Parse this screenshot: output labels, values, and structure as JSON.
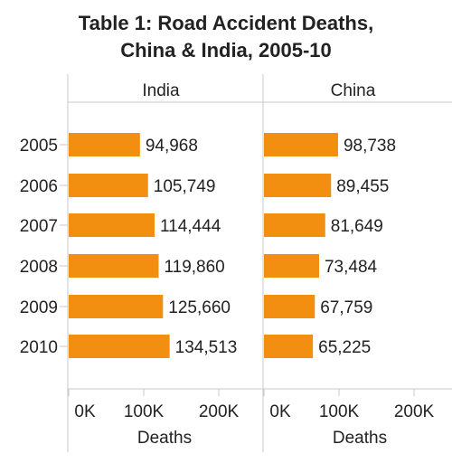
{
  "title_line1": "Table 1: Road Accident Deaths,",
  "title_line2": "China & India, 2005-10",
  "chart_data": {
    "type": "bar",
    "orientation": "horizontal",
    "categories": [
      "2005",
      "2006",
      "2007",
      "2008",
      "2009",
      "2010"
    ],
    "panels": [
      {
        "name": "India",
        "values": [
          94968,
          105749,
          114444,
          119860,
          125660,
          134513
        ],
        "labels": [
          "94,968",
          "105,749",
          "114,444",
          "119,860",
          "125,660",
          "134,513"
        ]
      },
      {
        "name": "China",
        "values": [
          98738,
          89455,
          81649,
          73484,
          67759,
          65225
        ],
        "labels": [
          "98,738",
          "89,455",
          "81,649",
          "73,484",
          "67,759",
          "65,225"
        ]
      }
    ],
    "xlabel": "Deaths",
    "xticks": [
      "0K",
      "100K",
      "200K"
    ],
    "xtick_values": [
      0,
      100000,
      200000
    ],
    "xlim": [
      0,
      250000
    ],
    "bar_color": "#f28e10",
    "grid": false
  }
}
